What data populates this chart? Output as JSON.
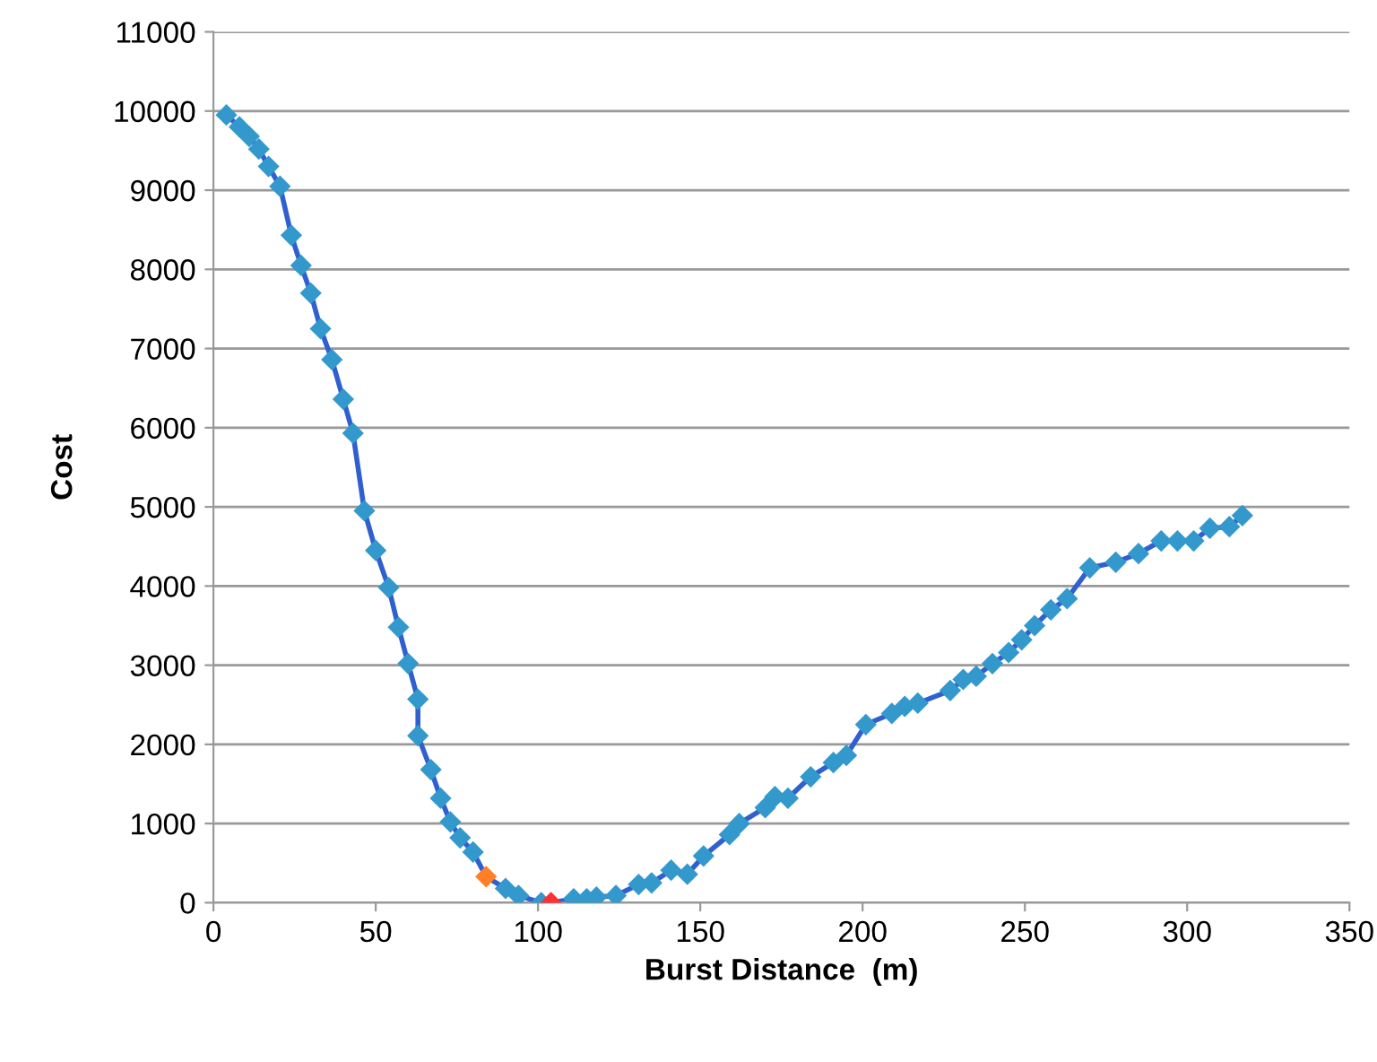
{
  "chart_data": {
    "type": "line",
    "xlabel": "Burst Distance  (m)",
    "ylabel": "Cost",
    "xlim": [
      0,
      350
    ],
    "xticks": [
      0,
      50,
      100,
      150,
      200,
      250,
      300,
      350
    ],
    "ylim": [
      0,
      11000
    ],
    "yticks": [
      0,
      1000,
      2000,
      3000,
      4000,
      5000,
      6000,
      7000,
      8000,
      9000,
      10000,
      11000
    ],
    "grid": "y",
    "marker": "diamond",
    "line_style": "solid",
    "series": [
      {
        "color": "#3060d0",
        "x": [
          4,
          8,
          11,
          14,
          17,
          20.5,
          24,
          27,
          30,
          33,
          36.5,
          40,
          43,
          46.5,
          50,
          54,
          57,
          60,
          63,
          63,
          67,
          70,
          73,
          76,
          80,
          84,
          90,
          94,
          101,
          104,
          111,
          115,
          118,
          124,
          131,
          135,
          141,
          146,
          151,
          159,
          162,
          170,
          173,
          177,
          184,
          191,
          195,
          201,
          209,
          213,
          217,
          227,
          231,
          235,
          240,
          245,
          249,
          253,
          258,
          263,
          270,
          278,
          285,
          292,
          297,
          302,
          307,
          313,
          317
        ],
        "values": [
          9950,
          9800,
          9680,
          9520,
          9300,
          9050,
          8430,
          8050,
          7700,
          7250,
          6860,
          6360,
          5930,
          4950,
          4450,
          3980,
          3480,
          3020,
          2570,
          2110,
          1680,
          1320,
          1020,
          820,
          640,
          330,
          180,
          90,
          0,
          0,
          50,
          50,
          70,
          90,
          230,
          250,
          410,
          360,
          590,
          860,
          1000,
          1200,
          1340,
          1320,
          1590,
          1770,
          1860,
          2250,
          2390,
          2480,
          2520,
          2680,
          2820,
          2860,
          3020,
          3160,
          3320,
          3500,
          3700,
          3840,
          4230,
          4300,
          4410,
          4570,
          4570,
          4570,
          4730,
          4750,
          4890
        ],
        "colors": [
          "#3399cc",
          "#3399cc",
          "#3399cc",
          "#3399cc",
          "#3399cc",
          "#3399cc",
          "#3399cc",
          "#3399cc",
          "#3399cc",
          "#3399cc",
          "#3399cc",
          "#3399cc",
          "#3399cc",
          "#3399cc",
          "#3399cc",
          "#3399cc",
          "#3399cc",
          "#3399cc",
          "#3399cc",
          "#3399cc",
          "#3399cc",
          "#3399cc",
          "#3399cc",
          "#3399cc",
          "#3399cc",
          "#ff7f27",
          "#3399cc",
          "#3399cc",
          "#3399cc",
          "#ff3030",
          "#3399cc",
          "#3399cc",
          "#3399cc",
          "#3399cc",
          "#3399cc",
          "#3399cc",
          "#3399cc",
          "#3399cc",
          "#3399cc",
          "#3399cc",
          "#3399cc",
          "#3399cc",
          "#3399cc",
          "#3399cc",
          "#3399cc",
          "#3399cc",
          "#3399cc",
          "#3399cc",
          "#3399cc",
          "#3399cc",
          "#3399cc",
          "#3399cc",
          "#3399cc",
          "#3399cc",
          "#3399cc",
          "#3399cc",
          "#3399cc",
          "#3399cc",
          "#3399cc",
          "#3399cc",
          "#3399cc",
          "#3399cc",
          "#3399cc",
          "#3399cc",
          "#3399cc",
          "#3399cc",
          "#3399cc",
          "#3399cc",
          "#3399cc"
        ]
      }
    ]
  }
}
